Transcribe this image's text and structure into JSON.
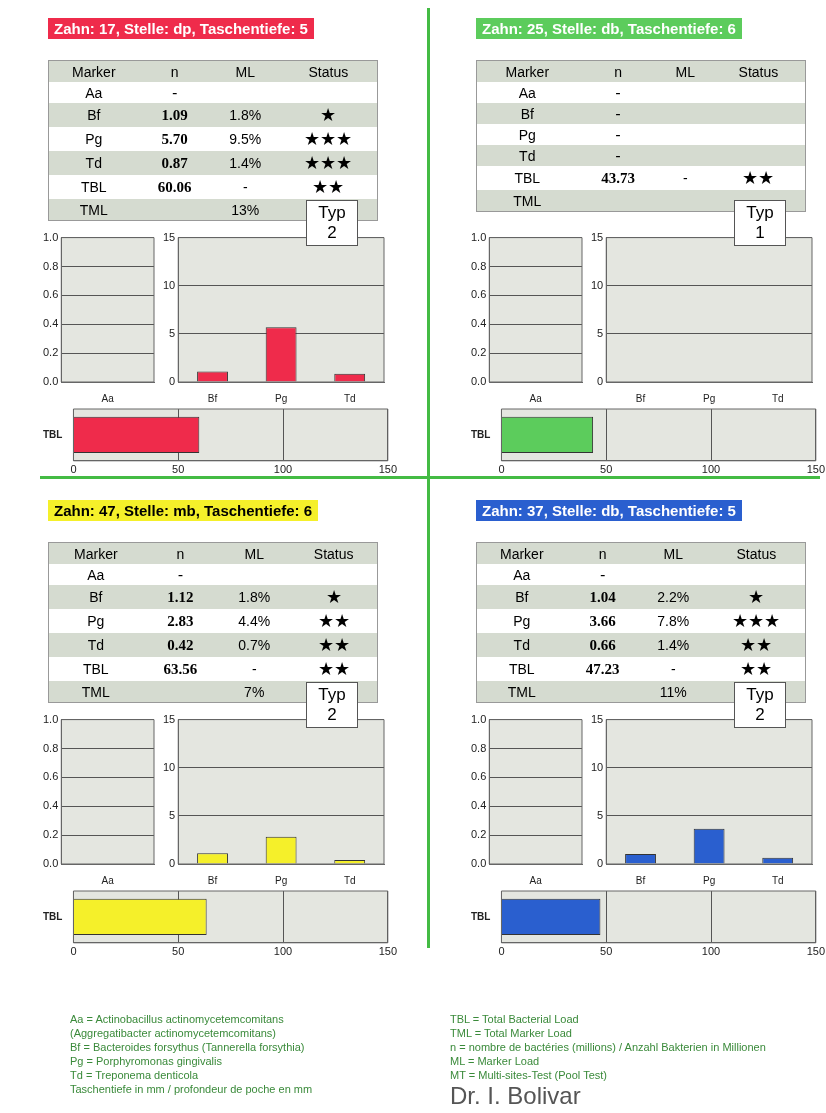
{
  "chart_data": [
    {
      "type": "other",
      "title": "Zahn: 17, Stelle: dp, Taschentiefe: 5",
      "color": "#ef2b4b",
      "categories": [
        "Marker",
        "n",
        "ML",
        "Status"
      ],
      "y_categories": [
        "Aa",
        "Bf",
        "Pg",
        "Td",
        "TBL",
        "TML"
      ],
      "cell_labels": [
        [
          "-",
          null,
          null
        ],
        [
          "1.09",
          "1.8%",
          "★"
        ],
        [
          "5.70",
          "9.5%",
          "★★★"
        ],
        [
          "0.87",
          "1.4%",
          "★★★"
        ],
        [
          "60.06",
          "-",
          "★★"
        ],
        [
          null,
          "13%",
          null
        ]
      ],
      "annotations": [
        "Typ 2"
      ]
    },
    {
      "type": "bar",
      "categories": [
        "Aa"
      ],
      "values": [
        null
      ],
      "color": "#ef2b4b",
      "ylim": [
        0,
        1
      ],
      "yticks": [
        {
          "value": 0,
          "label": "0.0"
        },
        {
          "value": 0.2,
          "label": "0.2"
        },
        {
          "value": 0.4,
          "label": "0.4"
        },
        {
          "value": 0.6,
          "label": "0.6"
        },
        {
          "value": 0.8,
          "label": "0.8"
        },
        {
          "value": 1,
          "label": "1.0"
        }
      ],
      "grid": "y"
    },
    {
      "type": "bar",
      "categories": [
        "Bf",
        "Pg",
        "Td"
      ],
      "values": [
        1.09,
        5.7,
        0.87
      ],
      "color": "#ef2b4b",
      "ylim": [
        0,
        15
      ],
      "yticks": [
        0,
        5,
        10,
        15
      ],
      "grid": "y"
    },
    {
      "type": "bar",
      "orientation": "horizontal",
      "categories": [
        "TBL"
      ],
      "values": [
        60.06
      ],
      "color": "#ef2b4b",
      "xlim": [
        0,
        150
      ],
      "xticks": [
        0,
        50,
        100,
        150
      ],
      "grid": "x"
    },
    {
      "type": "other",
      "title": "Zahn: 25, Stelle: db, Taschentiefe: 6",
      "color": "#5ccc5c",
      "categories": [
        "Marker",
        "n",
        "ML",
        "Status"
      ],
      "y_categories": [
        "Aa",
        "Bf",
        "Pg",
        "Td",
        "TBL",
        "TML"
      ],
      "cell_labels": [
        [
          "-",
          null,
          null
        ],
        [
          "-",
          null,
          null
        ],
        [
          "-",
          null,
          null
        ],
        [
          "-",
          null,
          null
        ],
        [
          "43.73",
          "-",
          "★★"
        ],
        [
          null,
          null,
          null
        ]
      ],
      "annotations": [
        "Typ 1"
      ]
    },
    {
      "type": "bar",
      "categories": [
        "Aa"
      ],
      "values": [
        null
      ],
      "color": "#5ccc5c",
      "ylim": [
        0,
        1
      ],
      "yticks": [
        {
          "value": 0,
          "label": "0.0"
        },
        {
          "value": 0.2,
          "label": "0.2"
        },
        {
          "value": 0.4,
          "label": "0.4"
        },
        {
          "value": 0.6,
          "label": "0.6"
        },
        {
          "value": 0.8,
          "label": "0.8"
        },
        {
          "value": 1,
          "label": "1.0"
        }
      ],
      "grid": "y"
    },
    {
      "type": "bar",
      "categories": [
        "Bf",
        "Pg",
        "Td"
      ],
      "values": [
        null,
        null,
        null
      ],
      "color": "#5ccc5c",
      "ylim": [
        0,
        15
      ],
      "yticks": [
        0,
        5,
        10,
        15
      ],
      "grid": "y"
    },
    {
      "type": "bar",
      "orientation": "horizontal",
      "categories": [
        "TBL"
      ],
      "values": [
        43.73
      ],
      "color": "#5ccc5c",
      "xlim": [
        0,
        150
      ],
      "xticks": [
        0,
        50,
        100,
        150
      ],
      "grid": "x"
    },
    {
      "type": "other",
      "title": "Zahn: 47, Stelle: mb, Taschentiefe: 6",
      "color": "#f5f02a",
      "categories": [
        "Marker",
        "n",
        "ML",
        "Status"
      ],
      "y_categories": [
        "Aa",
        "Bf",
        "Pg",
        "Td",
        "TBL",
        "TML"
      ],
      "cell_labels": [
        [
          "-",
          null,
          null
        ],
        [
          "1.12",
          "1.8%",
          "★"
        ],
        [
          "2.83",
          "4.4%",
          "★★"
        ],
        [
          "0.42",
          "0.7%",
          "★★"
        ],
        [
          "63.56",
          "-",
          "★★"
        ],
        [
          null,
          "7%",
          null
        ]
      ],
      "annotations": [
        "Typ 2"
      ]
    },
    {
      "type": "bar",
      "categories": [
        "Aa"
      ],
      "values": [
        null
      ],
      "color": "#f5f02a",
      "ylim": [
        0,
        1
      ],
      "yticks": [
        {
          "value": 0,
          "label": "0.0"
        },
        {
          "value": 0.2,
          "label": "0.2"
        },
        {
          "value": 0.4,
          "label": "0.4"
        },
        {
          "value": 0.6,
          "label": "0.6"
        },
        {
          "value": 0.8,
          "label": "0.8"
        },
        {
          "value": 1,
          "label": "1.0"
        }
      ],
      "grid": "y"
    },
    {
      "type": "bar",
      "categories": [
        "Bf",
        "Pg",
        "Td"
      ],
      "values": [
        1.12,
        2.83,
        0.42
      ],
      "color": "#f5f02a",
      "ylim": [
        0,
        15
      ],
      "yticks": [
        0,
        5,
        10,
        15
      ],
      "grid": "y"
    },
    {
      "type": "bar",
      "orientation": "horizontal",
      "categories": [
        "TBL"
      ],
      "values": [
        63.56
      ],
      "color": "#f5f02a",
      "xlim": [
        0,
        150
      ],
      "xticks": [
        0,
        50,
        100,
        150
      ],
      "grid": "x"
    },
    {
      "type": "other",
      "title": "Zahn: 37, Stelle: db, Taschentiefe: 5",
      "color": "#2a5fcf",
      "categories": [
        "Marker",
        "n",
        "ML",
        "Status"
      ],
      "y_categories": [
        "Aa",
        "Bf",
        "Pg",
        "Td",
        "TBL",
        "TML"
      ],
      "cell_labels": [
        [
          "-",
          null,
          null
        ],
        [
          "1.04",
          "2.2%",
          "★"
        ],
        [
          "3.66",
          "7.8%",
          "★★★"
        ],
        [
          "0.66",
          "1.4%",
          "★★"
        ],
        [
          "47.23",
          "-",
          "★★"
        ],
        [
          null,
          "11%",
          null
        ]
      ],
      "annotations": [
        "Typ 2"
      ]
    },
    {
      "type": "bar",
      "categories": [
        "Aa"
      ],
      "values": [
        null
      ],
      "color": "#2a5fcf",
      "ylim": [
        0,
        1
      ],
      "yticks": [
        {
          "value": 0,
          "label": "0.0"
        },
        {
          "value": 0.2,
          "label": "0.2"
        },
        {
          "value": 0.4,
          "label": "0.4"
        },
        {
          "value": 0.6,
          "label": "0.6"
        },
        {
          "value": 0.8,
          "label": "0.8"
        },
        {
          "value": 1,
          "label": "1.0"
        }
      ],
      "grid": "y"
    },
    {
      "type": "bar",
      "categories": [
        "Bf",
        "Pg",
        "Td"
      ],
      "values": [
        1.04,
        3.66,
        0.66
      ],
      "color": "#2a5fcf",
      "ylim": [
        0,
        15
      ],
      "yticks": [
        0,
        5,
        10,
        15
      ],
      "grid": "y"
    },
    {
      "type": "bar",
      "orientation": "horizontal",
      "categories": [
        "TBL"
      ],
      "values": [
        47.23
      ],
      "color": "#2a5fcf",
      "xlim": [
        0,
        150
      ],
      "xticks": [
        0,
        50,
        100,
        150
      ],
      "grid": "x"
    },
    {
      "type": "other",
      "annotations": [
        "Aa = Actinobacillus actinomycetemcomitans",
        "(Aggregatibacter actinomycetemcomitans)",
        "Bf = Bacteroides forsythus (Tannerella forsythia)",
        "Pg = Porphyromonas gingivalis",
        "Td = Treponema denticola",
        "Taschentiefe in mm / profondeur de poche en mm",
        "TBL = Total Bacterial Load",
        "TML = Total Marker Load",
        "n = nombre de bactéries (millions) / Anzahl Bakterien in Millionen",
        "ML = Marker Load",
        "MT = Multi-sites-Test (Pool Test)",
        "Dr. I. Bolivar"
      ]
    }
  ]
}
